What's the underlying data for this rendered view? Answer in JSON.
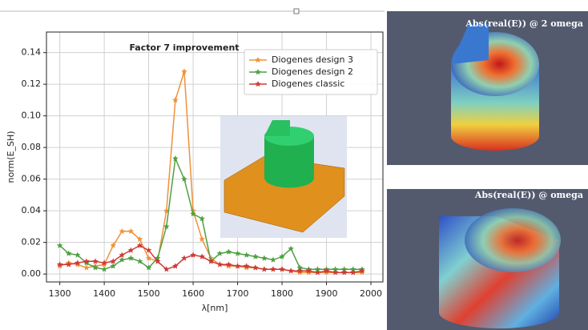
{
  "chart_data": {
    "type": "line",
    "annotation": "Factor 7 improvement",
    "xlabel": "λ[nm]",
    "ylabel": "norm(E_SH)",
    "x": [
      1300,
      1320,
      1340,
      1360,
      1380,
      1400,
      1420,
      1440,
      1460,
      1480,
      1500,
      1520,
      1540,
      1560,
      1580,
      1600,
      1620,
      1640,
      1660,
      1680,
      1700,
      1720,
      1740,
      1760,
      1780,
      1800,
      1820,
      1840,
      1860,
      1880,
      1900,
      1920,
      1940,
      1960,
      1980
    ],
    "series": [
      {
        "name": "Diogenes design 3",
        "color": "#f0913a",
        "values": [
          0.005,
          0.007,
          0.006,
          0.004,
          0.005,
          0.006,
          0.018,
          0.027,
          0.027,
          0.022,
          0.01,
          0.008,
          0.04,
          0.11,
          0.128,
          0.04,
          0.022,
          0.01,
          0.006,
          0.005,
          0.005,
          0.004,
          0.004,
          0.003,
          0.003,
          0.003,
          0.002,
          0.001,
          0.001,
          0.001,
          0.001,
          0.001,
          0.001,
          0.001,
          0.001
        ]
      },
      {
        "name": "Diogenes design 2",
        "color": "#4fa043",
        "values": [
          0.018,
          0.013,
          0.012,
          0.007,
          0.004,
          0.003,
          0.005,
          0.009,
          0.01,
          0.008,
          0.004,
          0.01,
          0.03,
          0.073,
          0.06,
          0.038,
          0.035,
          0.008,
          0.013,
          0.014,
          0.013,
          0.012,
          0.011,
          0.01,
          0.009,
          0.011,
          0.016,
          0.004,
          0.003,
          0.003,
          0.003,
          0.003,
          0.003,
          0.003,
          0.003
        ]
      },
      {
        "name": "Diogenes classic",
        "color": "#cf3a37",
        "values": [
          0.006,
          0.006,
          0.007,
          0.008,
          0.008,
          0.007,
          0.008,
          0.012,
          0.015,
          0.018,
          0.015,
          0.008,
          0.003,
          0.005,
          0.01,
          0.012,
          0.011,
          0.008,
          0.006,
          0.006,
          0.005,
          0.005,
          0.004,
          0.003,
          0.003,
          0.003,
          0.002,
          0.002,
          0.002,
          0.001,
          0.002,
          0.001,
          0.001,
          0.001,
          0.002
        ]
      }
    ],
    "xlim": [
      1270,
      2027
    ],
    "ylim": [
      -0.005,
      0.153
    ],
    "xticks": [
      1300,
      1400,
      1500,
      1600,
      1700,
      1800,
      1900,
      2000
    ],
    "yticks": [
      {
        "value": 0,
        "label": "0.00"
      },
      0.02,
      0.04,
      0.06,
      0.08,
      {
        "value": 0.1,
        "label": "0.10"
      },
      0.12,
      0.14
    ],
    "grid": true,
    "legend": "upper right"
  },
  "panels": [
    {
      "title": "Abs(real(E)) @ 2 omega"
    },
    {
      "title": "Abs(real(E)) @ omega"
    }
  ]
}
